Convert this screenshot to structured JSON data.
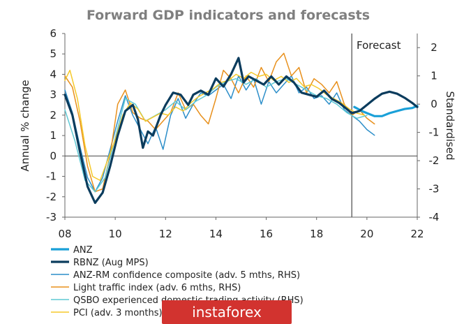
{
  "chart_data": {
    "type": "line",
    "title": "Forward GDP indicators and forecasts",
    "ylabel": "Annual % change",
    "y2label": "Standardised",
    "forecast_label": "Forecast",
    "forecast_start": 2019.4,
    "xlim": [
      2008,
      2022
    ],
    "ylim": [
      -3,
      6
    ],
    "y2lim": [
      -4,
      2.5
    ],
    "x_ticks": [
      "08",
      "10",
      "12",
      "14",
      "16",
      "18",
      "20",
      "22"
    ],
    "y_ticks": [
      "-3",
      "-2",
      "-1",
      "0",
      "1",
      "2",
      "3",
      "4",
      "5",
      "6"
    ],
    "y2_ticks": [
      "-4",
      "-3",
      "-2",
      "-1",
      "0",
      "1",
      "2"
    ],
    "series": [
      {
        "name": "ANZ",
        "axis": "left",
        "color": "#1aa0d8",
        "style": "thick",
        "x": [
          2019.5,
          2019.8,
          2020.0,
          2020.3,
          2020.6,
          2020.9,
          2021.2,
          2021.5,
          2021.8,
          2022.0
        ],
        "y": [
          2.4,
          2.2,
          2.1,
          1.95,
          1.95,
          2.1,
          2.2,
          2.3,
          2.35,
          2.45
        ]
      },
      {
        "name": "RBNZ (Aug MPS)",
        "axis": "left",
        "color": "#0b3c5d",
        "style": "thick",
        "x": [
          2008.0,
          2008.3,
          2008.6,
          2008.9,
          2009.2,
          2009.5,
          2009.8,
          2010.1,
          2010.4,
          2010.7,
          2010.9,
          2011.1,
          2011.3,
          2011.5,
          2011.8,
          2012.0,
          2012.3,
          2012.6,
          2012.9,
          2013.1,
          2013.4,
          2013.7,
          2014.0,
          2014.3,
          2014.6,
          2014.9,
          2015.1,
          2015.3,
          2015.6,
          2015.9,
          2016.2,
          2016.5,
          2016.8,
          2017.1,
          2017.4,
          2017.7,
          2018.0,
          2018.3,
          2018.6,
          2018.9,
          2019.2,
          2019.4,
          2019.7,
          2020.0,
          2020.3,
          2020.6,
          2020.9,
          2021.2,
          2021.5,
          2021.8,
          2022.0
        ],
        "y": [
          3.0,
          2.0,
          0.2,
          -1.5,
          -2.3,
          -1.8,
          -0.5,
          1.0,
          2.2,
          2.5,
          1.8,
          0.4,
          1.2,
          1.0,
          2.0,
          2.5,
          3.1,
          3.0,
          2.5,
          3.0,
          3.2,
          3.0,
          3.8,
          3.4,
          4.0,
          4.8,
          3.6,
          3.9,
          3.7,
          3.5,
          3.9,
          3.5,
          3.9,
          3.6,
          3.1,
          3.0,
          2.9,
          3.2,
          2.8,
          2.6,
          2.3,
          2.1,
          2.2,
          2.5,
          2.8,
          3.05,
          3.15,
          3.05,
          2.85,
          2.6,
          2.4
        ]
      },
      {
        "name": "ANZ-RM confidence composite (adv. 5 mths, RHS)",
        "axis": "right",
        "color": "#2c8ec9",
        "style": "thin",
        "x": [
          2008.0,
          2008.3,
          2008.6,
          2008.9,
          2009.2,
          2009.5,
          2009.8,
          2010.1,
          2010.4,
          2010.7,
          2011.0,
          2011.3,
          2011.6,
          2011.9,
          2012.2,
          2012.5,
          2012.8,
          2013.1,
          2013.4,
          2013.7,
          2014.0,
          2014.3,
          2014.6,
          2014.9,
          2015.2,
          2015.5,
          2015.8,
          2016.1,
          2016.4,
          2016.7,
          2017.0,
          2017.3,
          2017.6,
          2017.9,
          2018.2,
          2018.5,
          2018.8,
          2019.1,
          2019.4,
          2019.7,
          2020.0,
          2020.3
        ],
        "y": [
          0.5,
          -0.3,
          -1.5,
          -2.6,
          -3.1,
          -2.6,
          -1.6,
          -0.6,
          0.3,
          -0.4,
          -0.9,
          -1.4,
          -0.8,
          -1.6,
          -0.4,
          0.2,
          -0.5,
          0.0,
          0.4,
          0.3,
          0.5,
          0.7,
          0.2,
          1.0,
          0.5,
          0.9,
          0.0,
          0.8,
          0.4,
          0.7,
          1.0,
          0.4,
          0.6,
          0.2,
          0.3,
          0.0,
          0.4,
          -0.2,
          -0.4,
          -0.6,
          -0.9,
          -1.1
        ]
      },
      {
        "name": "Light traffic index (adv. 6 mths, RHS)",
        "axis": "right",
        "color": "#e8901c",
        "style": "thin",
        "x": [
          2008.0,
          2008.3,
          2008.6,
          2008.9,
          2009.2,
          2009.5,
          2009.8,
          2010.1,
          2010.4,
          2010.7,
          2011.0,
          2011.3,
          2011.6,
          2011.9,
          2012.2,
          2012.5,
          2012.8,
          2013.1,
          2013.4,
          2013.7,
          2014.0,
          2014.3,
          2014.6,
          2014.9,
          2015.2,
          2015.5,
          2015.8,
          2016.1,
          2016.4,
          2016.7,
          2017.0,
          2017.3,
          2017.6,
          2017.9,
          2018.2,
          2018.5,
          2018.8,
          2019.1,
          2019.4,
          2019.7,
          2020.0,
          2020.3
        ],
        "y": [
          1.0,
          0.6,
          -0.6,
          -2.2,
          -3.1,
          -3.0,
          -1.8,
          0.0,
          0.5,
          -0.3,
          -0.5,
          -0.6,
          -0.9,
          -0.6,
          -0.3,
          0.4,
          -0.2,
          0.0,
          -0.4,
          -0.7,
          0.2,
          1.2,
          0.9,
          0.4,
          1.0,
          0.6,
          1.3,
          0.8,
          1.5,
          1.8,
          1.0,
          1.3,
          0.4,
          0.9,
          0.7,
          0.4,
          0.8,
          0.0,
          -0.4,
          -0.2,
          -0.5,
          -0.7
        ]
      },
      {
        "name": "QSBO experienced domestic trading activity (RHS)",
        "axis": "right",
        "color": "#5fc9d4",
        "style": "thin",
        "x": [
          2008.0,
          2008.4,
          2008.8,
          2009.2,
          2009.6,
          2010.0,
          2010.4,
          2010.8,
          2011.2,
          2011.6,
          2012.0,
          2012.4,
          2012.8,
          2013.2,
          2013.6,
          2014.0,
          2014.4,
          2014.8,
          2015.2,
          2015.6,
          2016.0,
          2016.4,
          2016.8,
          2017.2,
          2017.6,
          2018.0,
          2018.4,
          2018.8,
          2019.2,
          2019.6,
          2020.0
        ],
        "y": [
          -0.2,
          -1.3,
          -2.7,
          -3.1,
          -2.6,
          -1.2,
          0.2,
          0.0,
          -0.6,
          -0.4,
          -0.2,
          0.1,
          -0.2,
          0.1,
          0.3,
          0.6,
          0.8,
          0.9,
          0.7,
          0.9,
          0.6,
          0.8,
          0.9,
          0.7,
          0.5,
          0.3,
          0.2,
          0.0,
          -0.3,
          -0.5,
          -0.4
        ]
      },
      {
        "name": "PCI (adv. 3 months)",
        "axis": "left",
        "color": "#f5c92a",
        "style": "thin",
        "x": [
          2008.0,
          2008.2,
          2008.5,
          2008.8,
          2009.1,
          2009.4,
          2009.7,
          2010.0,
          2010.3,
          2010.6,
          2010.9,
          2011.2,
          2011.5,
          2011.8,
          2012.1,
          2012.4,
          2012.7,
          2013.0,
          2013.3,
          2013.6,
          2013.9,
          2014.2,
          2014.5,
          2014.8,
          2015.1,
          2015.4,
          2015.7,
          2016.0,
          2016.3,
          2016.6,
          2016.9,
          2017.2,
          2017.5,
          2017.8,
          2018.1,
          2018.4,
          2018.7,
          2019.0,
          2019.3,
          2019.6,
          2019.9
        ],
        "y": [
          3.7,
          4.2,
          2.8,
          0.5,
          -1.0,
          -1.2,
          -0.2,
          0.8,
          2.0,
          2.6,
          2.3,
          1.7,
          1.9,
          2.1,
          2.0,
          2.4,
          2.2,
          2.6,
          2.9,
          3.1,
          3.3,
          3.6,
          3.7,
          4.0,
          3.8,
          4.1,
          3.9,
          4.0,
          3.7,
          3.9,
          3.6,
          3.8,
          3.4,
          3.5,
          3.3,
          3.0,
          2.8,
          2.6,
          2.3,
          2.1,
          2.0
        ]
      }
    ]
  },
  "watermark": "instaforex"
}
